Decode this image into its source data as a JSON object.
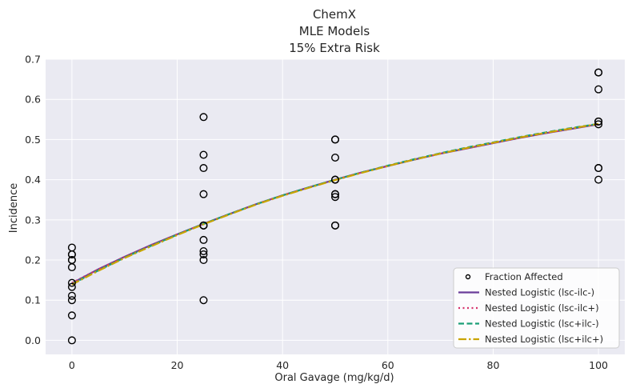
{
  "chart_data": {
    "type": "scatter",
    "title": [
      "ChemX",
      "MLE Models",
      "15% Extra Risk"
    ],
    "xlabel": "Oral Gavage (mg/kg/d)",
    "ylabel": "Incidence",
    "xlim": [
      -5,
      105
    ],
    "ylim": [
      -0.035,
      0.7
    ],
    "xticks": [
      0,
      20,
      40,
      60,
      80,
      100
    ],
    "yticks": [
      0.0,
      0.1,
      0.2,
      0.3,
      0.4,
      0.5,
      0.6,
      0.7
    ],
    "xtick_labels": [
      "0",
      "20",
      "40",
      "60",
      "80",
      "100"
    ],
    "ytick_labels": [
      "0.0",
      "0.1",
      "0.2",
      "0.3",
      "0.4",
      "0.5",
      "0.6",
      "0.7"
    ],
    "grid": true,
    "legend_position": "lower-right",
    "scatter": {
      "name": "Fraction Affected",
      "x": [
        0,
        0,
        0,
        0,
        0,
        0,
        0,
        0,
        0,
        0,
        0,
        0,
        25,
        25,
        25,
        25,
        25,
        25,
        25,
        25,
        25,
        25,
        25,
        25,
        50,
        50,
        50,
        50,
        50,
        50,
        50,
        50,
        50,
        50,
        50,
        100,
        100,
        100,
        100,
        100,
        100,
        100,
        100,
        100
      ],
      "y": [
        0.0,
        0.062,
        0.1,
        0.111,
        0.133,
        0.143,
        0.182,
        0.2,
        0.2,
        0.214,
        0.214,
        0.231,
        0.1,
        0.2,
        0.214,
        0.222,
        0.25,
        0.286,
        0.286,
        0.364,
        0.429,
        0.462,
        0.556,
        0.286,
        0.286,
        0.286,
        0.357,
        0.364,
        0.364,
        0.4,
        0.4,
        0.455,
        0.5,
        0.5,
        0.4,
        0.4,
        0.429,
        0.429,
        0.538,
        0.545,
        0.545,
        0.625,
        0.667,
        0.667
      ]
    },
    "series": [
      {
        "name": "Nested Logistic (lsc-ilc-)",
        "color": "#6a3d9a",
        "style": "solid",
        "x": [
          0,
          5,
          10,
          15,
          20,
          25,
          30,
          35,
          40,
          45,
          50,
          55,
          60,
          65,
          70,
          75,
          80,
          85,
          90,
          95,
          100
        ],
        "y": [
          0.142,
          0.177,
          0.208,
          0.237,
          0.264,
          0.29,
          0.315,
          0.339,
          0.361,
          0.381,
          0.4,
          0.418,
          0.434,
          0.45,
          0.465,
          0.478,
          0.491,
          0.504,
          0.516,
          0.527,
          0.538
        ]
      },
      {
        "name": "Nested Logistic (lsc-ilc+)",
        "color": "#d6336c",
        "style": "dotted",
        "x": [
          0,
          5,
          10,
          15,
          20,
          25,
          30,
          35,
          40,
          45,
          50,
          55,
          60,
          65,
          70,
          75,
          80,
          85,
          90,
          95,
          100
        ],
        "y": [
          0.143,
          0.177,
          0.208,
          0.237,
          0.264,
          0.29,
          0.315,
          0.339,
          0.361,
          0.381,
          0.4,
          0.418,
          0.434,
          0.45,
          0.465,
          0.478,
          0.491,
          0.504,
          0.516,
          0.527,
          0.538
        ]
      },
      {
        "name": "Nested Logistic (lsc+ilc-)",
        "color": "#1b9e77",
        "style": "dashed",
        "x": [
          0,
          5,
          10,
          15,
          20,
          25,
          30,
          35,
          40,
          45,
          50,
          55,
          60,
          65,
          70,
          75,
          80,
          85,
          90,
          95,
          100
        ],
        "y": [
          0.14,
          0.174,
          0.206,
          0.235,
          0.263,
          0.29,
          0.315,
          0.339,
          0.361,
          0.381,
          0.4,
          0.418,
          0.435,
          0.451,
          0.466,
          0.48,
          0.493,
          0.506,
          0.518,
          0.529,
          0.539
        ]
      },
      {
        "name": "Nested Logistic (lsc+ilc+)",
        "color": "#c9a400",
        "style": "dashdot",
        "x": [
          0,
          5,
          10,
          15,
          20,
          25,
          30,
          35,
          40,
          45,
          50,
          55,
          60,
          65,
          70,
          75,
          80,
          85,
          90,
          95,
          100
        ],
        "y": [
          0.139,
          0.173,
          0.205,
          0.234,
          0.262,
          0.289,
          0.314,
          0.338,
          0.36,
          0.38,
          0.399,
          0.417,
          0.434,
          0.45,
          0.465,
          0.479,
          0.492,
          0.505,
          0.517,
          0.528,
          0.539
        ]
      }
    ],
    "colors": {
      "background": "#eaeaf2",
      "grid": "#ffffff",
      "marker_edge": "#000000"
    }
  }
}
